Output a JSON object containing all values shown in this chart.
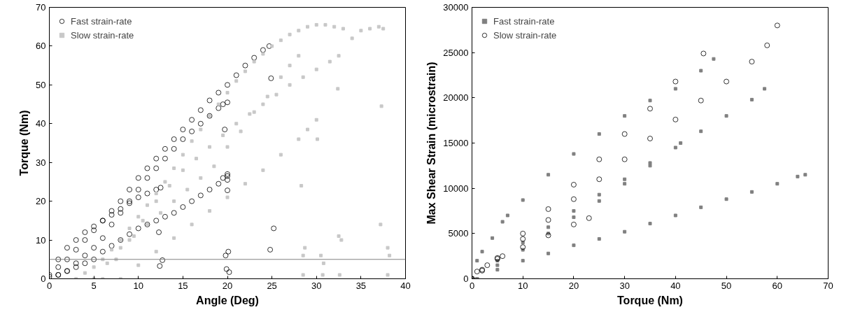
{
  "chart_data": [
    {
      "type": "scatter",
      "xlabel": "Angle (Deg)",
      "ylabel": "Torque (Nm)",
      "xlim": [
        0,
        40
      ],
      "ylim": [
        0,
        70
      ],
      "xticks": [
        0,
        5,
        10,
        15,
        20,
        25,
        30,
        35,
        40
      ],
      "yticks": [
        0,
        10,
        20,
        30,
        40,
        50,
        60,
        70
      ],
      "legend": "top left",
      "ref_lines": [
        {
          "axis": "y",
          "value": 5,
          "color": "#808080"
        }
      ],
      "series": [
        {
          "name": "Fast strain-rate",
          "color": "#000000",
          "marker": "circle",
          "x": [
            0,
            1,
            2,
            3,
            4,
            5,
            6,
            7,
            8,
            9,
            10,
            11,
            12,
            13,
            14,
            15,
            16,
            17,
            18,
            19,
            20,
            21,
            22,
            23,
            24,
            24.7,
            0,
            1,
            2,
            3,
            4,
            5,
            6,
            7,
            8,
            9,
            10,
            11,
            12,
            13,
            14,
            15,
            16,
            17,
            18,
            19,
            19.5,
            20,
            1,
            2,
            3,
            4,
            5,
            6,
            7,
            8,
            9,
            10,
            11,
            12,
            12.5,
            1,
            2,
            3,
            4,
            5,
            6,
            7,
            8,
            9,
            10,
            11,
            12,
            13,
            14,
            15,
            16,
            17,
            18,
            19,
            19.5,
            20,
            20,
            20,
            12.3,
            12.4,
            12.7,
            19.7,
            20,
            19.8,
            20.1,
            19.9,
            20.2,
            24.9,
            25.2,
            24.8
          ],
          "values": [
            1,
            3,
            5,
            7.5,
            10,
            12.5,
            15,
            17.5,
            20,
            23,
            26,
            28.5,
            31,
            33.5,
            36,
            38.5,
            41,
            43.5,
            46,
            48,
            50,
            52.5,
            55,
            57,
            59,
            60,
            0.5,
            1,
            2,
            4,
            6,
            8,
            10.5,
            14,
            17,
            20,
            23,
            26,
            28.5,
            31,
            33.5,
            36,
            38,
            40,
            42,
            44,
            45,
            45.5,
            5,
            8,
            10,
            12,
            13.5,
            15,
            16.5,
            18,
            19.5,
            21,
            22,
            23,
            23.5,
            1,
            2,
            3,
            4,
            5,
            7,
            8.5,
            10,
            11.5,
            13,
            14,
            15,
            16,
            17,
            18.5,
            20,
            21.5,
            23,
            24.5,
            26,
            26.5,
            27,
            25.5,
            12,
            3.3,
            4.8,
            38.5,
            22.8,
            6,
            7,
            2.5,
            1.7,
            51.7,
            13,
            7.5
          ]
        },
        {
          "name": "Slow strain-rate",
          "color": "#c8c8c8",
          "marker": "square",
          "x": [
            3,
            4,
            5,
            6,
            7,
            8,
            9,
            10,
            11,
            12,
            13,
            14,
            15,
            16,
            17,
            18,
            19,
            20,
            21,
            22,
            23,
            24,
            25,
            26,
            27,
            28,
            29,
            30,
            31,
            32,
            33,
            34,
            35,
            36,
            37,
            37.5,
            5,
            6.5,
            8,
            9.5,
            11,
            12.5,
            14,
            15.5,
            17,
            18.5,
            20,
            21.5,
            23,
            24.5,
            26,
            27,
            28,
            6,
            7.5,
            9,
            10.5,
            12,
            13.5,
            15,
            16.5,
            18,
            19.5,
            21,
            22.5,
            24,
            25.5,
            27,
            28.5,
            30,
            31.5,
            32.5,
            8,
            10,
            12,
            14,
            16,
            18,
            20,
            22,
            24,
            26,
            28,
            29,
            30,
            28.3,
            30.1,
            32.4,
            37.3,
            37.2,
            28.5,
            28.7,
            30.5,
            30.8,
            32.5,
            32.8,
            38,
            38.2,
            28.5,
            30.7,
            32.6,
            38
          ],
          "values": [
            0,
            1.5,
            3,
            5,
            7.5,
            10,
            13,
            16,
            19,
            22,
            25,
            28.5,
            32,
            35.5,
            38.5,
            42,
            45,
            48,
            51,
            53.5,
            56,
            58,
            60,
            61.5,
            63,
            64,
            65,
            65.5,
            65.5,
            65,
            64.5,
            62,
            64,
            64.5,
            65,
            64.5,
            0,
            4,
            8,
            11,
            14,
            17,
            20,
            23,
            26,
            29,
            34,
            38,
            43,
            47,
            52,
            55,
            57.5,
            0,
            5,
            10,
            15,
            20,
            24,
            28,
            31,
            34,
            37,
            40,
            42.5,
            45,
            47.5,
            50,
            52,
            54,
            56,
            57.5,
            0,
            3.5,
            7,
            10.5,
            14,
            17.5,
            21,
            24.5,
            28,
            32,
            36,
            38.5,
            41,
            24,
            36,
            49,
            44.5,
            14,
            6,
            8,
            6,
            4,
            11,
            10,
            8,
            6,
            1,
            1,
            1,
            1
          ]
        }
      ]
    },
    {
      "type": "scatter",
      "xlabel": "Torque (Nm)",
      "ylabel": "Max Shear Strain (microstrain)",
      "xlim": [
        0,
        70
      ],
      "ylim": [
        0,
        30000
      ],
      "xticks": [
        0,
        10,
        20,
        30,
        40,
        50,
        60,
        70
      ],
      "yticks": [
        0,
        5000,
        10000,
        15000,
        20000,
        25000,
        30000
      ],
      "legend": "top left",
      "series": [
        {
          "name": "Fast strain-rate",
          "color": "#808080",
          "marker": "square",
          "x": [
            0,
            1,
            2,
            4,
            6,
            7,
            10,
            15,
            20,
            25,
            30,
            35,
            40,
            45,
            47.5,
            1,
            5,
            10,
            15,
            20,
            25,
            30,
            35,
            40,
            45,
            50,
            55,
            57.5,
            1,
            5,
            10,
            15,
            20,
            25,
            30,
            35,
            41,
            1,
            5,
            10,
            15,
            20,
            25,
            30,
            35,
            40,
            45,
            50,
            55,
            60,
            64,
            65.5
          ],
          "values": [
            0,
            2000,
            3000,
            4500,
            6300,
            7000,
            8700,
            11500,
            13800,
            16000,
            18000,
            19700,
            21000,
            23000,
            24300,
            0,
            2000,
            4000,
            5700,
            7500,
            9300,
            11000,
            12800,
            14500,
            16300,
            18000,
            19800,
            21000,
            0,
            1500,
            3200,
            5000,
            6800,
            8600,
            10500,
            12500,
            15000,
            0,
            1000,
            2000,
            2800,
            3700,
            4400,
            5200,
            6100,
            7000,
            7900,
            8800,
            9600,
            10500,
            11300,
            11500
          ]
        },
        {
          "name": "Slow strain-rate",
          "color": "#000000",
          "marker": "circle",
          "x": [
            0,
            2,
            5,
            10,
            15,
            20,
            25,
            30,
            35,
            40,
            45.5,
            0,
            2,
            5,
            10,
            15,
            20,
            25,
            30,
            35,
            40,
            45,
            50,
            55,
            58,
            60,
            0,
            1,
            3,
            6,
            10,
            15,
            20,
            23
          ],
          "values": [
            0,
            1000,
            2300,
            5000,
            7700,
            10400,
            13200,
            16000,
            18800,
            21800,
            24900,
            0,
            900,
            2200,
            4400,
            6500,
            8800,
            11000,
            13200,
            15500,
            17600,
            19700,
            21800,
            24000,
            25800,
            28000,
            0,
            800,
            1500,
            2500,
            3500,
            4800,
            6000,
            6700
          ]
        }
      ]
    }
  ]
}
